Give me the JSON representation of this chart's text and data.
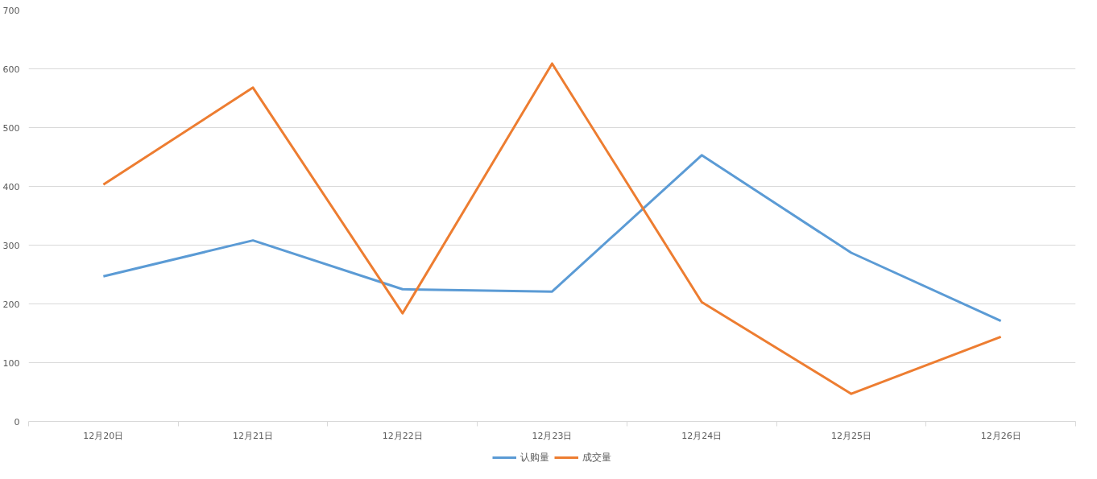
{
  "chart_data": {
    "type": "line",
    "categories": [
      "12月20日",
      "12月21日",
      "12月22日",
      "12月23日",
      "12月24日",
      "12月25日",
      "12月26日"
    ],
    "series": [
      {
        "name": "认购量",
        "color": "#5b9bd5",
        "values": [
          247,
          308,
          225,
          221,
          453,
          287,
          171
        ]
      },
      {
        "name": "成交量",
        "color": "#ed7d31",
        "values": [
          403,
          568,
          184,
          609,
          203,
          47,
          144
        ]
      }
    ],
    "ylim": [
      0,
      700
    ],
    "yticks": [
      0,
      100,
      200,
      300,
      400,
      500,
      600,
      700
    ],
    "grid": "y",
    "legend": "bottom",
    "line_style": "solid",
    "marker": "none"
  }
}
